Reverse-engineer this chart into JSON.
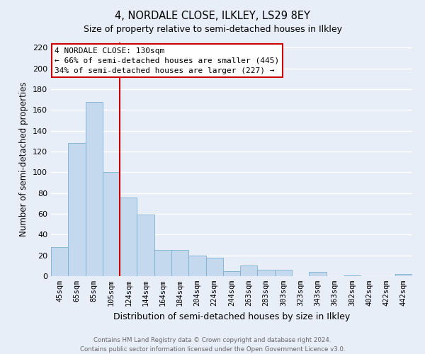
{
  "title": "4, NORDALE CLOSE, ILKLEY, LS29 8EY",
  "subtitle": "Size of property relative to semi-detached houses in Ilkley",
  "xlabel": "Distribution of semi-detached houses by size in Ilkley",
  "ylabel": "Number of semi-detached properties",
  "bar_color": "#c5d9ee",
  "bar_edge_color": "#7aafd4",
  "categories": [
    "45sqm",
    "65sqm",
    "85sqm",
    "105sqm",
    "124sqm",
    "144sqm",
    "164sqm",
    "184sqm",
    "204sqm",
    "224sqm",
    "244sqm",
    "263sqm",
    "283sqm",
    "303sqm",
    "323sqm",
    "343sqm",
    "363sqm",
    "382sqm",
    "402sqm",
    "422sqm",
    "442sqm"
  ],
  "values": [
    28,
    128,
    168,
    100,
    76,
    59,
    25,
    25,
    20,
    18,
    5,
    10,
    6,
    6,
    0,
    4,
    0,
    1,
    0,
    0,
    2
  ],
  "ylim": [
    0,
    225
  ],
  "yticks": [
    0,
    20,
    40,
    60,
    80,
    100,
    120,
    140,
    160,
    180,
    200,
    220
  ],
  "annotation_title": "4 NORDALE CLOSE: 130sqm",
  "annotation_line1": "← 66% of semi-detached houses are smaller (445)",
  "annotation_line2": "34% of semi-detached houses are larger (227) →",
  "footer_line1": "Contains HM Land Registry data © Crown copyright and database right 2024.",
  "footer_line2": "Contains public sector information licensed under the Open Government Licence v3.0.",
  "vline_color": "#cc0000",
  "annotation_box_facecolor": "#ffffff",
  "annotation_box_edgecolor": "#cc0000",
  "background_color": "#e8eef8",
  "grid_color": "#ffffff",
  "vline_pos": 3.5
}
